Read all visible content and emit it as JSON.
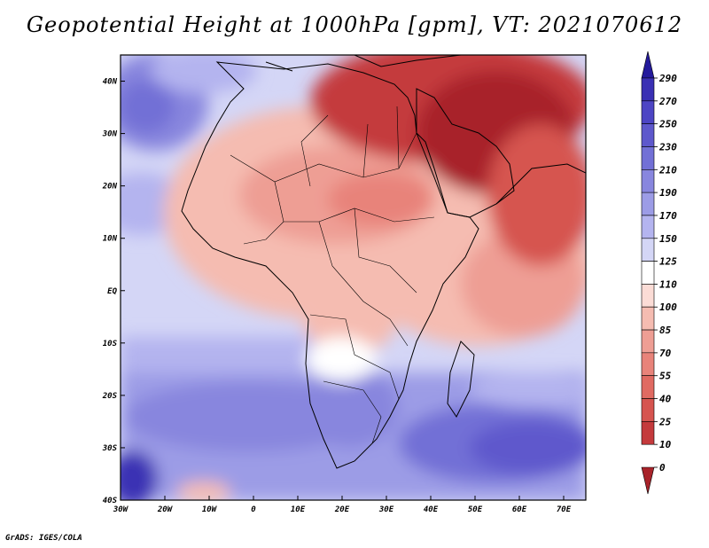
{
  "title": "Geopotential Height at 1000hPa [gpm], VT: 2021070612",
  "credit": "GrADS: IGES/COLA",
  "chart_data": {
    "type": "heatmap",
    "title": "Geopotential Height at 1000hPa [gpm], VT: 2021070612",
    "variable": "Geopotential Height at 1000hPa",
    "units": "gpm",
    "valid_time": "2021070612",
    "x_ticks": [
      "30W",
      "20W",
      "10W",
      "0",
      "10E",
      "20E",
      "30E",
      "40E",
      "50E",
      "60E",
      "70E"
    ],
    "y_ticks": [
      "40N",
      "30N",
      "20N",
      "10N",
      "EQ",
      "10S",
      "20S",
      "30S",
      "40S"
    ],
    "xlim": [
      -30,
      75
    ],
    "ylim": [
      -40,
      45
    ],
    "colorbar_levels": [
      "290",
      "270",
      "250",
      "230",
      "210",
      "190",
      "170",
      "150",
      "125",
      "110",
      "100",
      "85",
      "70",
      "55",
      "40",
      "25",
      "10",
      "0"
    ],
    "colorbar_colors": [
      "#241a9c",
      "#3a30b4",
      "#4d45c4",
      "#5e58cc",
      "#7270d6",
      "#8886de",
      "#9c9ce6",
      "#b4b4ef",
      "#d4d6f6",
      "#ffffff",
      "#fbdcd6",
      "#f5bcb1",
      "#ee9e94",
      "#e8837a",
      "#e06a62",
      "#d6544f",
      "#c43a3c",
      "#a8232a"
    ],
    "colors": {
      "frame": "#000000",
      "ocean_mid": "#d4d6f6",
      "land_low": "#a8232a"
    }
  }
}
